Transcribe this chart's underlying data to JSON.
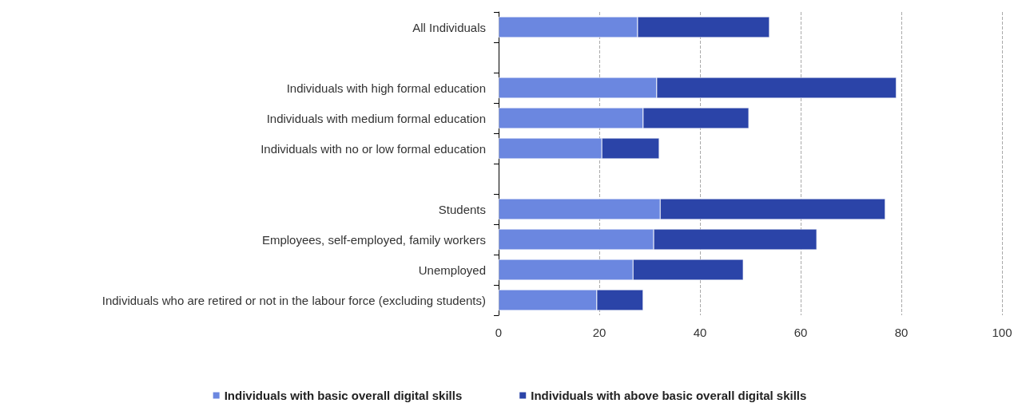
{
  "chart_data": {
    "type": "bar",
    "orientation": "horizontal",
    "stacked": true,
    "categories": [
      "All Individuals",
      null,
      "Individuals with high formal education",
      "Individuals with medium formal education",
      "Individuals with no or low formal education",
      null,
      "Students",
      "Employees, self-employed, family workers",
      "Unemployed",
      "Individuals who are retired or not in the labour force (excluding students)"
    ],
    "series": [
      {
        "name": "Individuals with basic overall digital skills",
        "color": "#6b87e0",
        "values": [
          27.6,
          null,
          31.4,
          28.7,
          20.5,
          null,
          32.1,
          30.8,
          26.7,
          19.5
        ]
      },
      {
        "name": "Individuals with above basic overall digital skills",
        "color": "#2b44a8",
        "values": [
          26.2,
          null,
          47.6,
          21.0,
          11.4,
          null,
          44.7,
          32.4,
          21.9,
          9.2
        ]
      }
    ],
    "xlim": [
      0,
      100
    ],
    "xticks": [
      0,
      20,
      40,
      60,
      80,
      100
    ],
    "grid": "x",
    "legend": "bottom"
  }
}
